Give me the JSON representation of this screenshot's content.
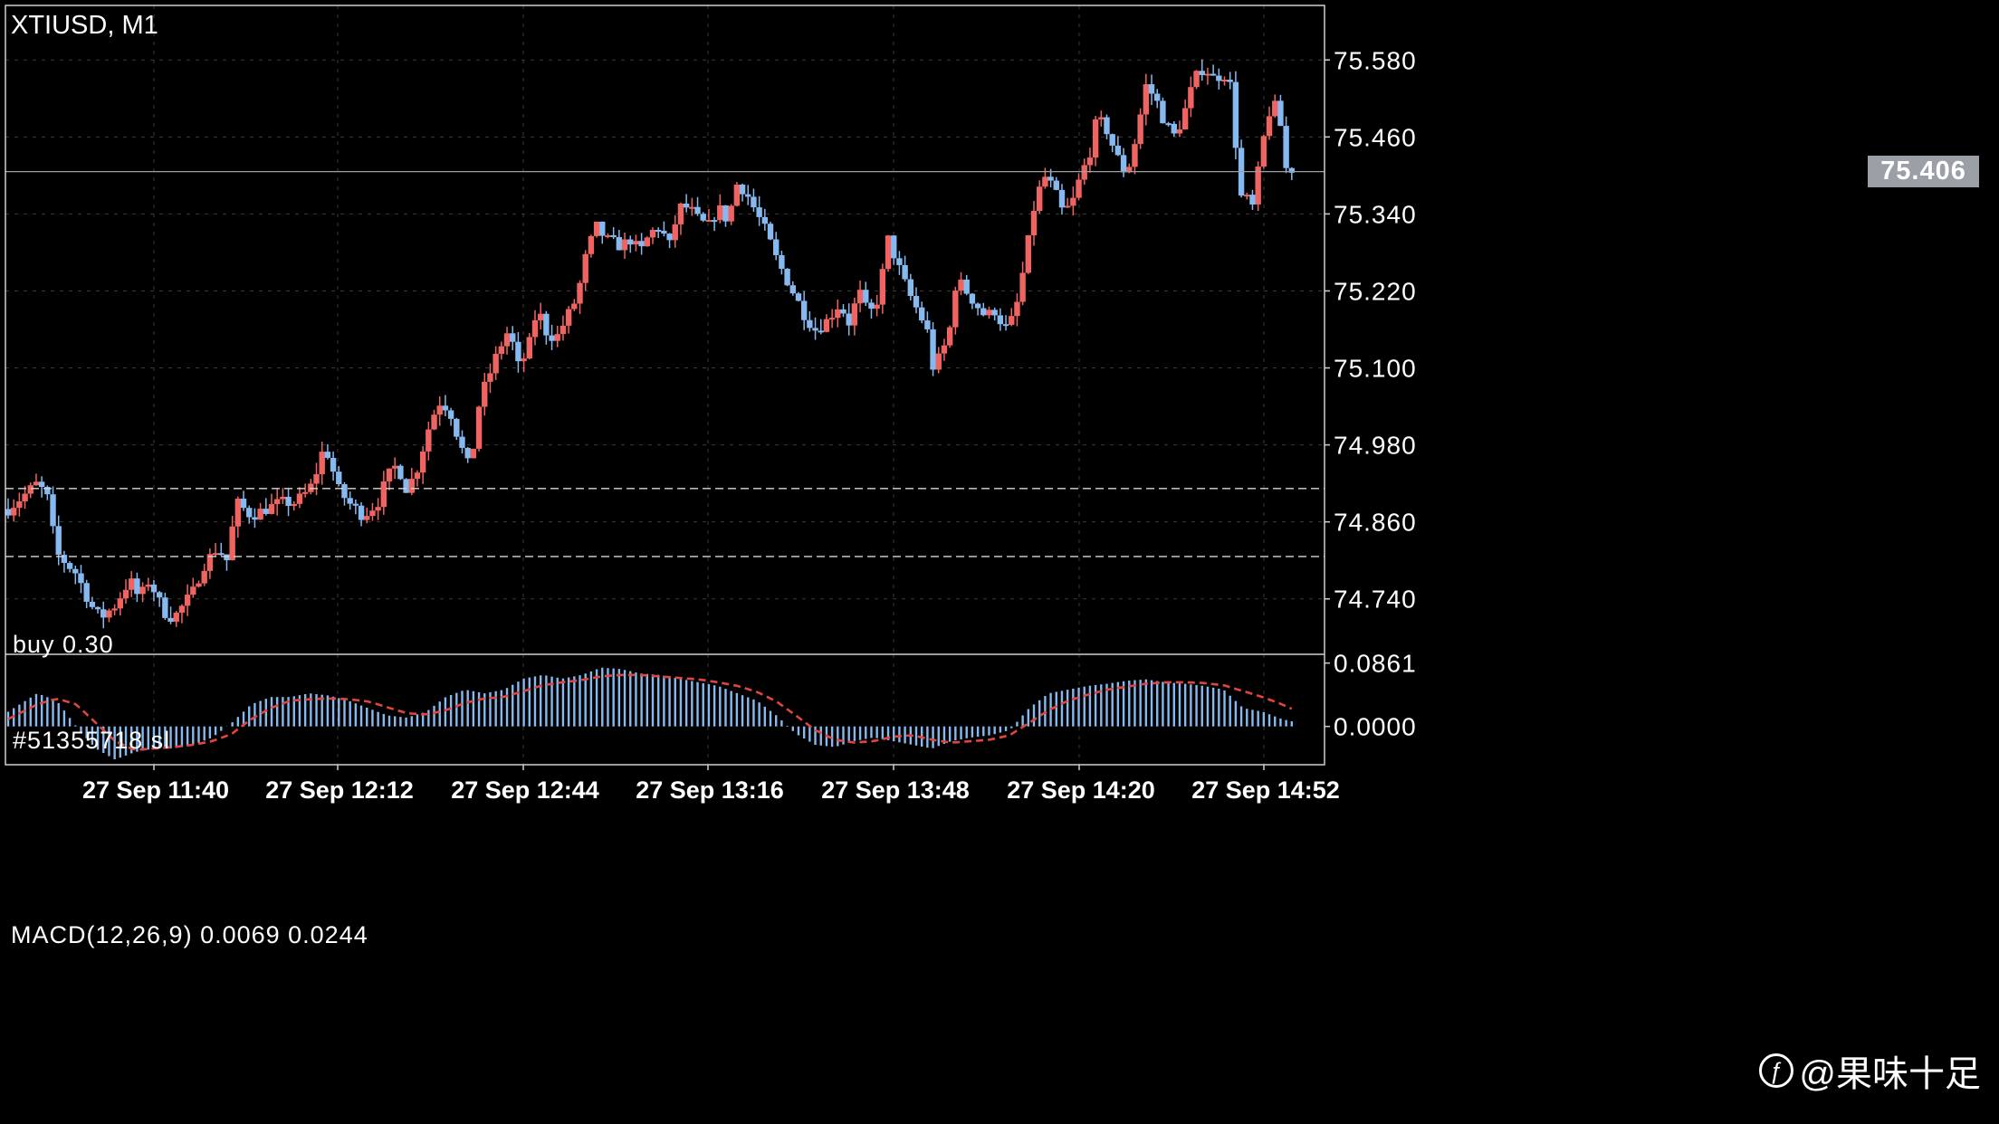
{
  "header": {
    "symbol_timeframe": "XTIUSD, M1"
  },
  "orders": {
    "buy_label": "buy 0.30",
    "sl_label": "#51355718 sl",
    "buy_price": 74.912,
    "sl_price": 74.806
  },
  "current_price_label": "75.406",
  "indicator": {
    "label": "MACD(12,26,9) 0.0069 0.0244"
  },
  "watermark": {
    "text": "@果味十足",
    "icon": "logo-swirl-icon"
  },
  "colors": {
    "bull": "#ef6461",
    "bear": "#86b9f0",
    "signal": "#e0453f",
    "grid": "#3a3a3a",
    "axis": "#ffffff"
  },
  "chart_data": [
    {
      "type": "candlestick",
      "title": "XTIUSD, M1",
      "y_ticks": [
        "75.580",
        "75.460",
        "75.340",
        "75.220",
        "75.100",
        "74.980",
        "74.860",
        "74.740"
      ],
      "y_tick_values": [
        75.58,
        75.46,
        75.34,
        75.22,
        75.1,
        74.98,
        74.86,
        74.74
      ],
      "x_ticks": [
        "27 Sep 11:40",
        "27 Sep 12:12",
        "27 Sep 12:44",
        "27 Sep 13:16",
        "27 Sep 13:48",
        "27 Sep 14:20",
        "27 Sep 14:52"
      ],
      "ylim": [
        74.655,
        75.665
      ],
      "grid": true,
      "current_price": 75.406,
      "candle_count": 230,
      "close_path": [
        [
          0,
          74.88
        ],
        [
          6,
          74.92
        ],
        [
          8,
          74.9
        ],
        [
          10,
          74.81
        ],
        [
          14,
          74.78
        ],
        [
          17,
          74.73
        ],
        [
          19,
          74.71
        ],
        [
          22,
          74.73
        ],
        [
          25,
          74.77
        ],
        [
          27,
          74.74
        ],
        [
          29,
          74.77
        ],
        [
          32,
          74.72
        ],
        [
          34,
          74.71
        ],
        [
          36,
          74.73
        ],
        [
          38,
          74.75
        ],
        [
          40,
          74.79
        ],
        [
          43,
          74.82
        ],
        [
          45,
          74.8
        ],
        [
          47,
          74.89
        ],
        [
          50,
          74.87
        ],
        [
          53,
          74.88
        ],
        [
          56,
          74.89
        ],
        [
          59,
          74.89
        ],
        [
          62,
          74.91
        ],
        [
          64,
          74.95
        ],
        [
          65,
          74.98
        ],
        [
          66,
          74.96
        ],
        [
          68,
          74.91
        ],
        [
          70,
          74.89
        ],
        [
          73,
          74.87
        ],
        [
          76,
          74.89
        ],
        [
          78,
          74.93
        ],
        [
          80,
          74.95
        ],
        [
          82,
          74.91
        ],
        [
          84,
          74.94
        ],
        [
          87,
          75.02
        ],
        [
          89,
          75.05
        ],
        [
          91,
          75.03
        ],
        [
          93,
          74.98
        ],
        [
          95,
          74.94
        ],
        [
          97,
          75.05
        ],
        [
          99,
          75.09
        ],
        [
          101,
          75.13
        ],
        [
          103,
          75.16
        ],
        [
          105,
          75.1
        ],
        [
          107,
          75.13
        ],
        [
          108,
          75.17
        ],
        [
          109,
          75.19
        ],
        [
          111,
          75.15
        ],
        [
          113,
          75.15
        ],
        [
          115,
          75.18
        ],
        [
          117,
          75.21
        ],
        [
          119,
          75.28
        ],
        [
          121,
          75.32
        ],
        [
          123,
          75.3
        ],
        [
          126,
          75.29
        ],
        [
          128,
          75.3
        ],
        [
          130,
          75.28
        ],
        [
          132,
          75.31
        ],
        [
          134,
          75.32
        ],
        [
          136,
          75.29
        ],
        [
          138,
          75.35
        ],
        [
          140,
          75.35
        ],
        [
          142,
          75.33
        ],
        [
          144,
          75.32
        ],
        [
          146,
          75.35
        ],
        [
          148,
          75.33
        ],
        [
          150,
          75.39
        ],
        [
          152,
          75.37
        ],
        [
          154,
          75.34
        ],
        [
          156,
          75.31
        ],
        [
          158,
          75.27
        ],
        [
          160,
          75.24
        ],
        [
          162,
          75.21
        ],
        [
          164,
          75.18
        ],
        [
          166,
          75.16
        ],
        [
          168,
          75.17
        ],
        [
          170,
          75.19
        ],
        [
          171,
          75.2
        ],
        [
          173,
          75.17
        ],
        [
          175,
          75.22
        ],
        [
          177,
          75.18
        ],
        [
          179,
          75.21
        ],
        [
          181,
          75.3
        ],
        [
          183,
          75.26
        ],
        [
          185,
          75.22
        ],
        [
          187,
          75.19
        ],
        [
          189,
          75.16
        ],
        [
          190,
          75.1
        ],
        [
          192,
          75.12
        ],
        [
          194,
          75.17
        ],
        [
          195,
          75.24
        ],
        [
          197,
          75.22
        ],
        [
          199,
          75.2
        ],
        [
          201,
          75.18
        ],
        [
          203,
          75.19
        ],
        [
          205,
          75.16
        ],
        [
          207,
          75.18
        ],
        [
          209,
          75.26
        ],
        [
          211,
          75.35
        ],
        [
          213,
          75.4
        ],
        [
          215,
          75.38
        ],
        [
          217,
          75.34
        ],
        [
          219,
          75.36
        ],
        [
          221,
          75.41
        ],
        [
          222,
          75.42
        ],
        [
          224,
          75.49
        ],
        [
          226,
          75.47
        ],
        [
          228,
          75.43
        ],
        [
          230,
          75.4
        ],
        [
          232,
          75.46
        ],
        [
          234,
          75.54
        ],
        [
          236,
          75.52
        ],
        [
          238,
          75.48
        ],
        [
          240,
          75.46
        ],
        [
          242,
          75.5
        ],
        [
          244,
          75.55
        ],
        [
          246,
          75.57
        ],
        [
          248,
          75.55
        ],
        [
          250,
          75.56
        ],
        [
          252,
          75.53
        ],
        [
          253,
          75.36
        ],
        [
          254,
          75.37
        ],
        [
          256,
          75.35
        ],
        [
          258,
          75.45
        ],
        [
          260,
          75.52
        ],
        [
          262,
          75.47
        ],
        [
          263,
          75.4
        ],
        [
          264,
          75.41
        ]
      ]
    },
    {
      "type": "bar",
      "title": "MACD(12,26,9) 0.0069 0.0244",
      "series": [
        {
          "name": "MACD",
          "value": 0.0069
        },
        {
          "name": "Signal",
          "value": 0.0244
        }
      ],
      "y_ticks": [
        "0.0861",
        "0.0000"
      ],
      "y_tick_values": [
        0.0861,
        0.0
      ],
      "ylim": [
        -0.052,
        0.098
      ],
      "macd_path": [
        [
          0,
          0.02
        ],
        [
          6,
          0.045
        ],
        [
          10,
          0.035
        ],
        [
          14,
          0.0
        ],
        [
          18,
          -0.03
        ],
        [
          22,
          -0.045
        ],
        [
          26,
          -0.035
        ],
        [
          30,
          -0.03
        ],
        [
          34,
          -0.03
        ],
        [
          38,
          -0.025
        ],
        [
          42,
          -0.015
        ],
        [
          46,
          0.005
        ],
        [
          50,
          0.03
        ],
        [
          54,
          0.04
        ],
        [
          58,
          0.04
        ],
        [
          62,
          0.045
        ],
        [
          66,
          0.042
        ],
        [
          70,
          0.035
        ],
        [
          74,
          0.025
        ],
        [
          78,
          0.015
        ],
        [
          82,
          0.012
        ],
        [
          86,
          0.02
        ],
        [
          90,
          0.04
        ],
        [
          94,
          0.05
        ],
        [
          98,
          0.045
        ],
        [
          102,
          0.05
        ],
        [
          106,
          0.065
        ],
        [
          110,
          0.07
        ],
        [
          114,
          0.065
        ],
        [
          118,
          0.07
        ],
        [
          122,
          0.08
        ],
        [
          126,
          0.078
        ],
        [
          130,
          0.072
        ],
        [
          134,
          0.07
        ],
        [
          138,
          0.065
        ],
        [
          142,
          0.06
        ],
        [
          146,
          0.055
        ],
        [
          150,
          0.045
        ],
        [
          154,
          0.035
        ],
        [
          158,
          0.015
        ],
        [
          162,
          -0.01
        ],
        [
          166,
          -0.025
        ],
        [
          170,
          -0.028
        ],
        [
          174,
          -0.02
        ],
        [
          178,
          -0.015
        ],
        [
          182,
          -0.02
        ],
        [
          186,
          -0.025
        ],
        [
          190,
          -0.03
        ],
        [
          194,
          -0.02
        ],
        [
          198,
          -0.015
        ],
        [
          202,
          -0.012
        ],
        [
          206,
          -0.005
        ],
        [
          210,
          0.025
        ],
        [
          214,
          0.045
        ],
        [
          218,
          0.05
        ],
        [
          222,
          0.055
        ],
        [
          226,
          0.058
        ],
        [
          230,
          0.062
        ],
        [
          234,
          0.064
        ],
        [
          238,
          0.06
        ],
        [
          242,
          0.058
        ],
        [
          246,
          0.055
        ],
        [
          250,
          0.05
        ],
        [
          254,
          0.025
        ],
        [
          258,
          0.02
        ],
        [
          262,
          0.01
        ],
        [
          264,
          0.007
        ]
      ],
      "signal_path": [
        [
          0,
          0.01
        ],
        [
          6,
          0.03
        ],
        [
          10,
          0.038
        ],
        [
          14,
          0.03
        ],
        [
          18,
          0.005
        ],
        [
          22,
          -0.02
        ],
        [
          26,
          -0.032
        ],
        [
          30,
          -0.03
        ],
        [
          34,
          -0.028
        ],
        [
          38,
          -0.025
        ],
        [
          42,
          -0.02
        ],
        [
          46,
          -0.01
        ],
        [
          50,
          0.01
        ],
        [
          54,
          0.025
        ],
        [
          58,
          0.035
        ],
        [
          62,
          0.037
        ],
        [
          66,
          0.038
        ],
        [
          70,
          0.037
        ],
        [
          74,
          0.034
        ],
        [
          78,
          0.026
        ],
        [
          82,
          0.018
        ],
        [
          86,
          0.016
        ],
        [
          90,
          0.022
        ],
        [
          94,
          0.032
        ],
        [
          98,
          0.038
        ],
        [
          102,
          0.04
        ],
        [
          106,
          0.048
        ],
        [
          110,
          0.056
        ],
        [
          114,
          0.06
        ],
        [
          118,
          0.063
        ],
        [
          122,
          0.068
        ],
        [
          126,
          0.07
        ],
        [
          130,
          0.07
        ],
        [
          134,
          0.068
        ],
        [
          138,
          0.066
        ],
        [
          142,
          0.064
        ],
        [
          146,
          0.06
        ],
        [
          150,
          0.055
        ],
        [
          154,
          0.047
        ],
        [
          158,
          0.034
        ],
        [
          162,
          0.015
        ],
        [
          166,
          -0.005
        ],
        [
          170,
          -0.018
        ],
        [
          174,
          -0.022
        ],
        [
          178,
          -0.02
        ],
        [
          182,
          -0.014
        ],
        [
          186,
          -0.012
        ],
        [
          190,
          -0.018
        ],
        [
          194,
          -0.022
        ],
        [
          198,
          -0.02
        ],
        [
          202,
          -0.018
        ],
        [
          206,
          -0.012
        ],
        [
          210,
          0.005
        ],
        [
          214,
          0.022
        ],
        [
          218,
          0.035
        ],
        [
          222,
          0.043
        ],
        [
          226,
          0.05
        ],
        [
          230,
          0.054
        ],
        [
          234,
          0.058
        ],
        [
          238,
          0.06
        ],
        [
          242,
          0.06
        ],
        [
          246,
          0.059
        ],
        [
          250,
          0.056
        ],
        [
          254,
          0.048
        ],
        [
          258,
          0.04
        ],
        [
          262,
          0.03
        ],
        [
          264,
          0.024
        ]
      ]
    }
  ]
}
